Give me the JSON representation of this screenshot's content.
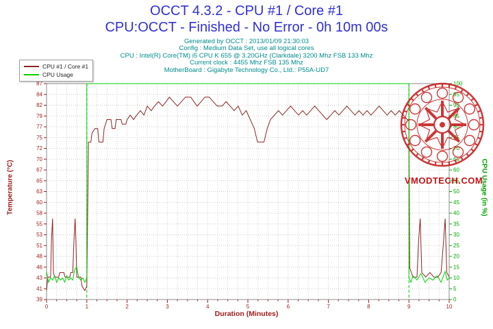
{
  "header": {
    "title": "OCCT 4.3.2 - CPU #1 / Core #1",
    "subtitle": "CPU:OCCT - Finished - No Error - 0h 10m 00s",
    "title_color": "#2f2fd3",
    "info_color": "#008b8b",
    "info_lines": [
      "Generated by OCCT : 2013/01/09 21:30:03",
      "Config : Medium Data Set, use all logical cores",
      "CPU : Intel(R) Core(TM) i5 CPU K 655 @ 3.20GHz (Clarkdale) 3200 Mhz FSB 133 Mhz",
      "Current clock : 4455 Mhz FSB 135 Mhz",
      "MotherBoard : Gigabyte Technology Co., Ltd.: P55A-UD7"
    ]
  },
  "legend": {
    "items": [
      {
        "label": "CPU #1 / Core #1",
        "color": "#8b2323"
      },
      {
        "label": "CPU Usage",
        "color": "#00d000"
      }
    ]
  },
  "watermark": {
    "text": "VMODTECH.COM",
    "color": "#c41414"
  },
  "chart_data": {
    "type": "line",
    "legend_position": "top-left",
    "xlim": [
      0,
      10
    ],
    "grid": {
      "show": true,
      "color": "#cccccc"
    },
    "plot_border_color": "#8a8a8a",
    "x_axis": {
      "label": "Duration (Minutes)",
      "color": "#9b1c1c",
      "major_ticks": [
        0,
        1,
        2,
        3,
        4,
        5,
        6,
        7,
        8,
        9,
        10
      ],
      "minor_step": 0.25
    },
    "left_axis": {
      "label": "Temperature (°C)",
      "color": "#9b1c1c",
      "range": [
        39,
        87
      ],
      "ticks_top_to_bottom": [
        87,
        84,
        82,
        79,
        77,
        75,
        72,
        70,
        67,
        65,
        63,
        60,
        58,
        55,
        53,
        51,
        48,
        46,
        43,
        41,
        39
      ]
    },
    "right_axis": {
      "label": "CPU Usage (in %)",
      "color": "#00a400",
      "range": [
        0,
        100
      ],
      "ticks_top_to_bottom": [
        100,
        95,
        90,
        85,
        80,
        75,
        70,
        65,
        60,
        55,
        50,
        45,
        40,
        35,
        30,
        25,
        20,
        15,
        10,
        5,
        0
      ]
    },
    "markers": {
      "x": [
        1,
        9
      ],
      "color": "#00c800"
    },
    "series": [
      {
        "name": "CPU #1 / Core #1",
        "axis": "left",
        "color": "#8b2323",
        "points": [
          [
            0,
            41
          ],
          [
            0.03,
            44
          ],
          [
            0.1,
            44
          ],
          [
            0.12,
            52
          ],
          [
            0.15,
            57
          ],
          [
            0.17,
            45
          ],
          [
            0.2,
            44
          ],
          [
            0.3,
            44
          ],
          [
            0.33,
            45
          ],
          [
            0.43,
            45
          ],
          [
            0.46,
            44
          ],
          [
            0.58,
            44
          ],
          [
            0.6,
            45
          ],
          [
            0.65,
            45
          ],
          [
            0.68,
            52
          ],
          [
            0.71,
            57
          ],
          [
            0.73,
            52
          ],
          [
            0.75,
            44
          ],
          [
            0.85,
            44
          ],
          [
            0.88,
            42
          ],
          [
            0.95,
            41
          ],
          [
            1,
            42
          ],
          [
            1.04,
            74
          ],
          [
            1.1,
            74
          ],
          [
            1.13,
            76
          ],
          [
            1.2,
            77
          ],
          [
            1.27,
            77
          ],
          [
            1.3,
            74
          ],
          [
            1.4,
            74
          ],
          [
            1.43,
            77
          ],
          [
            1.5,
            79
          ],
          [
            1.6,
            79
          ],
          [
            1.63,
            77
          ],
          [
            1.7,
            77
          ],
          [
            1.73,
            79
          ],
          [
            1.85,
            79
          ],
          [
            1.88,
            78
          ],
          [
            1.97,
            78
          ],
          [
            2,
            79
          ],
          [
            2.08,
            80
          ],
          [
            2.16,
            79
          ],
          [
            2.24,
            80
          ],
          [
            2.33,
            81
          ],
          [
            2.42,
            80
          ],
          [
            2.5,
            82
          ],
          [
            2.6,
            81
          ],
          [
            2.68,
            82
          ],
          [
            2.78,
            83
          ],
          [
            2.88,
            82
          ],
          [
            2.97,
            83
          ],
          [
            3.05,
            84
          ],
          [
            3.15,
            83
          ],
          [
            3.25,
            82
          ],
          [
            3.35,
            83
          ],
          [
            3.45,
            84
          ],
          [
            3.58,
            84
          ],
          [
            3.66,
            83
          ],
          [
            3.74,
            82
          ],
          [
            3.84,
            83
          ],
          [
            3.93,
            84
          ],
          [
            4.04,
            84
          ],
          [
            4.14,
            83
          ],
          [
            4.24,
            82
          ],
          [
            4.36,
            82
          ],
          [
            4.46,
            83
          ],
          [
            4.56,
            82
          ],
          [
            4.66,
            81
          ],
          [
            4.76,
            82
          ],
          [
            4.86,
            80
          ],
          [
            4.96,
            81
          ],
          [
            5.06,
            79
          ],
          [
            5.16,
            77
          ],
          [
            5.24,
            74
          ],
          [
            5.4,
            74
          ],
          [
            5.48,
            77
          ],
          [
            5.56,
            79
          ],
          [
            5.66,
            80
          ],
          [
            5.76,
            81
          ],
          [
            5.86,
            80
          ],
          [
            5.96,
            81
          ],
          [
            6.06,
            82
          ],
          [
            6.16,
            81
          ],
          [
            6.26,
            80
          ],
          [
            6.36,
            81
          ],
          [
            6.46,
            80
          ],
          [
            6.56,
            81
          ],
          [
            6.66,
            82
          ],
          [
            6.76,
            81
          ],
          [
            6.86,
            80
          ],
          [
            6.96,
            79
          ],
          [
            7.06,
            80
          ],
          [
            7.16,
            81
          ],
          [
            7.26,
            80
          ],
          [
            7.36,
            81
          ],
          [
            7.46,
            82
          ],
          [
            7.56,
            81
          ],
          [
            7.66,
            80
          ],
          [
            7.76,
            81
          ],
          [
            7.86,
            80
          ],
          [
            7.96,
            81
          ],
          [
            8.06,
            80
          ],
          [
            8.16,
            81
          ],
          [
            8.26,
            82
          ],
          [
            8.36,
            81
          ],
          [
            8.46,
            80
          ],
          [
            8.56,
            81
          ],
          [
            8.66,
            80
          ],
          [
            8.76,
            81
          ],
          [
            8.86,
            80
          ],
          [
            8.96,
            79
          ],
          [
            9,
            79
          ],
          [
            9.02,
            46
          ],
          [
            9.06,
            45
          ],
          [
            9.1,
            44
          ],
          [
            9.2,
            44
          ],
          [
            9.24,
            52
          ],
          [
            9.28,
            57
          ],
          [
            9.32,
            45
          ],
          [
            9.42,
            44
          ],
          [
            9.52,
            45
          ],
          [
            9.62,
            44
          ],
          [
            9.72,
            44
          ],
          [
            9.8,
            45
          ],
          [
            9.86,
            52
          ],
          [
            9.9,
            57
          ],
          [
            9.94,
            45
          ],
          [
            10,
            44
          ]
        ]
      },
      {
        "name": "CPU Usage",
        "axis": "right",
        "color": "#00d000",
        "points": [
          [
            0,
            13
          ],
          [
            0.05,
            8
          ],
          [
            0.1,
            10
          ],
          [
            0.15,
            9
          ],
          [
            0.2,
            11
          ],
          [
            0.25,
            8
          ],
          [
            0.3,
            10
          ],
          [
            0.35,
            9
          ],
          [
            0.4,
            10
          ],
          [
            0.45,
            8
          ],
          [
            0.5,
            11
          ],
          [
            0.55,
            9
          ],
          [
            0.6,
            10
          ],
          [
            0.65,
            9
          ],
          [
            0.7,
            14
          ],
          [
            0.75,
            15
          ],
          [
            0.8,
            10
          ],
          [
            0.85,
            9
          ],
          [
            0.9,
            10
          ],
          [
            0.95,
            8
          ],
          [
            1,
            10
          ],
          [
            1,
            100
          ],
          [
            9,
            100
          ],
          [
            9,
            10
          ],
          [
            9.05,
            8
          ],
          [
            9.1,
            11
          ],
          [
            9.2,
            9
          ],
          [
            9.3,
            12
          ],
          [
            9.4,
            8
          ],
          [
            9.5,
            10
          ],
          [
            9.6,
            9
          ],
          [
            9.7,
            11
          ],
          [
            9.8,
            8
          ],
          [
            9.9,
            13
          ],
          [
            9.95,
            9
          ],
          [
            10,
            10
          ]
        ]
      }
    ]
  }
}
